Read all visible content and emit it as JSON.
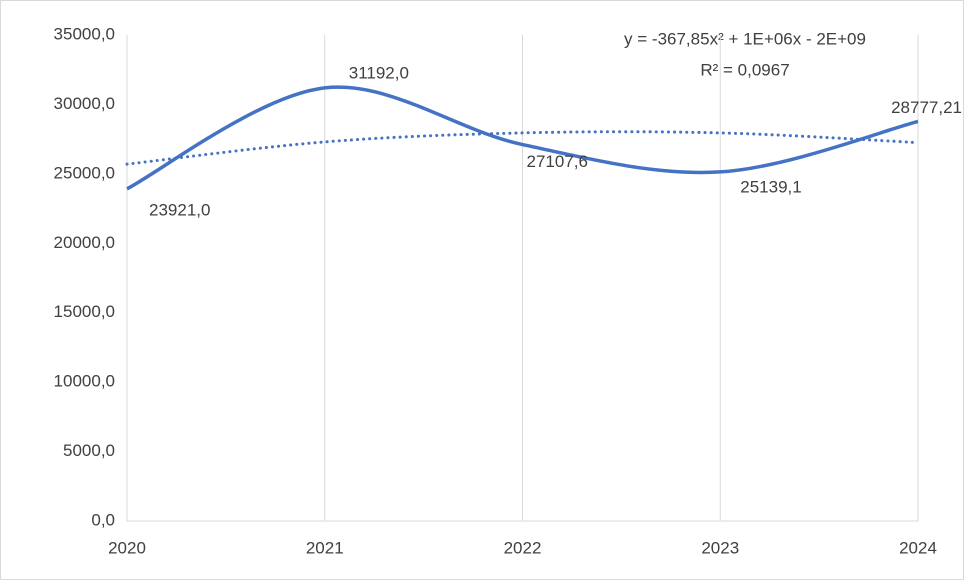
{
  "chart_data": {
    "type": "line",
    "x": [
      2020,
      2021,
      2022,
      2023,
      2024
    ],
    "series": [
      {
        "color": "#4472c4",
        "values": [
          23921,
          31192,
          27107.6,
          25139.1,
          28777.21
        ],
        "value_labels": [
          "23921,0",
          "31192,0",
          "27107,6",
          "25139,1",
          "28777,21"
        ]
      }
    ],
    "trendline": {
      "style": "dotted",
      "color": "#4472c4",
      "values": [
        25700,
        27300,
        27950,
        27950,
        27250
      ]
    },
    "annotations": [
      "y = -367,85x² + 1E+06x - 2E+09",
      "R² = 0,0967"
    ],
    "xlim": [
      2020,
      2024
    ],
    "xticks": [
      2020,
      2021,
      2022,
      2023,
      2024
    ],
    "ylim": [
      0,
      35000
    ],
    "yticks": [
      {
        "value": 0,
        "label": "0,0"
      },
      {
        "value": 5000,
        "label": "5000,0"
      },
      {
        "value": 10000,
        "label": "10000,0"
      },
      {
        "value": 15000,
        "label": "15000,0"
      },
      {
        "value": 20000,
        "label": "20000,0"
      },
      {
        "value": 25000,
        "label": "25000,0"
      },
      {
        "value": 30000,
        "label": "30000,0"
      },
      {
        "value": 35000,
        "label": "35000,0"
      }
    ],
    "grid": "x",
    "smooth": true
  }
}
